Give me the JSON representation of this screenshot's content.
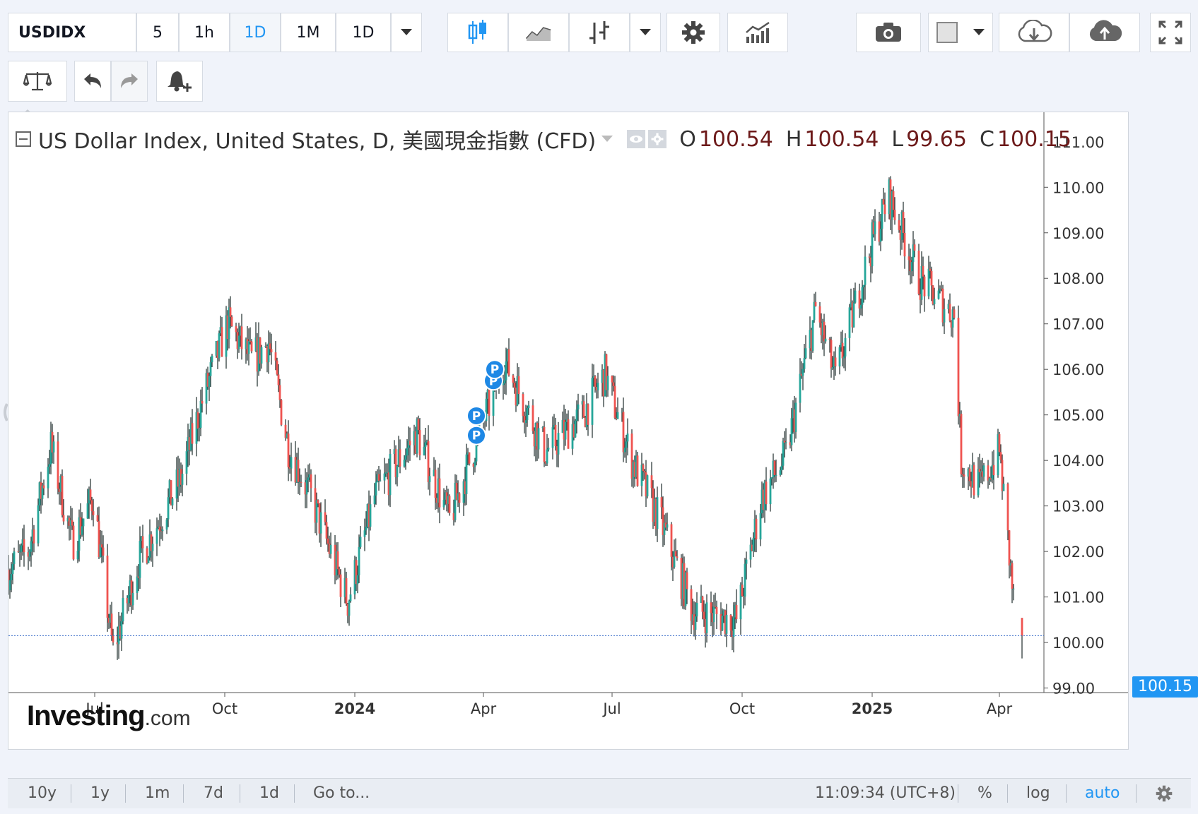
{
  "toolbar": {
    "symbol": "USDIDX",
    "intervals": [
      "5",
      "1h",
      "1D",
      "1M",
      "1D"
    ],
    "active_interval_index": 2,
    "dropdown_icon": "chevron-down-icon",
    "chart_type_icons": [
      "candlestick-icon",
      "line-chart-icon",
      "bar-chart-icon"
    ],
    "settings_icon": "gear-icon",
    "indicators_icon": "indicators-icon",
    "snapshot_icon": "camera-icon",
    "color_icon": "color-swatch-icon",
    "load_icon": "cloud-download-icon",
    "save_icon": "cloud-upload-icon",
    "fullscreen_icon": "fullscreen-icon"
  },
  "toolbar2": {
    "compare_icon": "scales-icon",
    "undo_icon": "undo-icon",
    "redo_icon": "redo-icon",
    "alert_icon": "alert-bell-icon"
  },
  "legend": {
    "title": "US Dollar Index, United States, D, 美國現金指數 (CFD)",
    "o_label": "O",
    "o_value": "100.54",
    "h_label": "H",
    "h_value": "100.54",
    "l_label": "L",
    "l_value": "99.65",
    "c_label": "C",
    "c_value": "100.15"
  },
  "price_label": "100.15",
  "watermark": {
    "brand": "Investing",
    "suffix": ".com"
  },
  "bottom_bar": {
    "ranges": [
      "10y",
      "1y",
      "1m",
      "7d",
      "1d"
    ],
    "goto": "Go to...",
    "clock": "11:09:34 (UTC+8)",
    "percent": "%",
    "log": "log",
    "auto": "auto",
    "settings_icon": "gear-icon"
  },
  "colors": {
    "up": "#26a69a",
    "down": "#ef5350",
    "wick": "#1d2b2a",
    "accent": "#2196f3",
    "price_line": "#3d6ec9",
    "marker": "#1e88e5"
  },
  "chart_data": {
    "type": "candlestick",
    "symbol": "USDIDX",
    "ylim": [
      98.9,
      111.4
    ],
    "yticks": [
      "111.00",
      "110.00",
      "109.00",
      "108.00",
      "107.00",
      "106.00",
      "105.00",
      "104.00",
      "103.00",
      "102.00",
      "101.00",
      "100.00",
      "99.00"
    ],
    "xticks": [
      "Jul",
      "Oct",
      "2024",
      "Apr",
      "Jul",
      "Oct",
      "2025",
      "Apr"
    ],
    "x_start": "2023-05-01",
    "x_end": "2025-04-17",
    "last_price": 100.15,
    "price_path": [
      {
        "date": "2023-05-01",
        "close": 101.6
      },
      {
        "date": "2023-05-15",
        "close": 102.0
      },
      {
        "date": "2023-05-31",
        "close": 104.3
      },
      {
        "date": "2023-06-15",
        "close": 102.2
      },
      {
        "date": "2023-06-30",
        "close": 103.2
      },
      {
        "date": "2023-07-14",
        "close": 99.8
      },
      {
        "date": "2023-08-01",
        "close": 101.8
      },
      {
        "date": "2023-08-31",
        "close": 103.6
      },
      {
        "date": "2023-09-15",
        "close": 105.3
      },
      {
        "date": "2023-10-03",
        "close": 107.0
      },
      {
        "date": "2023-10-20",
        "close": 106.2
      },
      {
        "date": "2023-11-01",
        "close": 106.6
      },
      {
        "date": "2023-11-15",
        "close": 104.3
      },
      {
        "date": "2023-12-01",
        "close": 103.2
      },
      {
        "date": "2023-12-27",
        "close": 100.9
      },
      {
        "date": "2024-01-15",
        "close": 103.2
      },
      {
        "date": "2024-02-14",
        "close": 104.6
      },
      {
        "date": "2024-03-08",
        "close": 102.7
      },
      {
        "date": "2024-03-28",
        "close": 104.5
      },
      {
        "date": "2024-04-16",
        "close": 106.2
      },
      {
        "date": "2024-05-15",
        "close": 104.2
      },
      {
        "date": "2024-06-10",
        "close": 105.0
      },
      {
        "date": "2024-06-26",
        "close": 105.9
      },
      {
        "date": "2024-07-15",
        "close": 104.0
      },
      {
        "date": "2024-08-05",
        "close": 102.6
      },
      {
        "date": "2024-08-27",
        "close": 100.7
      },
      {
        "date": "2024-09-27",
        "close": 100.5
      },
      {
        "date": "2024-10-15",
        "close": 103.2
      },
      {
        "date": "2024-11-01",
        "close": 104.1
      },
      {
        "date": "2024-11-22",
        "close": 107.3
      },
      {
        "date": "2024-12-06",
        "close": 105.8
      },
      {
        "date": "2025-01-02",
        "close": 108.9
      },
      {
        "date": "2025-01-13",
        "close": 109.8
      },
      {
        "date": "2025-02-03",
        "close": 108.0
      },
      {
        "date": "2025-02-28",
        "close": 107.2
      },
      {
        "date": "2025-03-05",
        "close": 104.0
      },
      {
        "date": "2025-03-18",
        "close": 103.4
      },
      {
        "date": "2025-04-01",
        "close": 104.2
      },
      {
        "date": "2025-04-11",
        "close": 100.9
      },
      {
        "date": "2025-04-17",
        "close": 100.15
      }
    ],
    "markers": [
      {
        "label": "P",
        "date": "2024-03-27",
        "price": 104.55
      },
      {
        "label": "P",
        "date": "2024-03-27",
        "price": 104.98
      },
      {
        "label": "P",
        "date": "2024-04-08",
        "price": 105.75
      },
      {
        "label": "P",
        "date": "2024-04-09",
        "price": 106.0
      }
    ]
  }
}
